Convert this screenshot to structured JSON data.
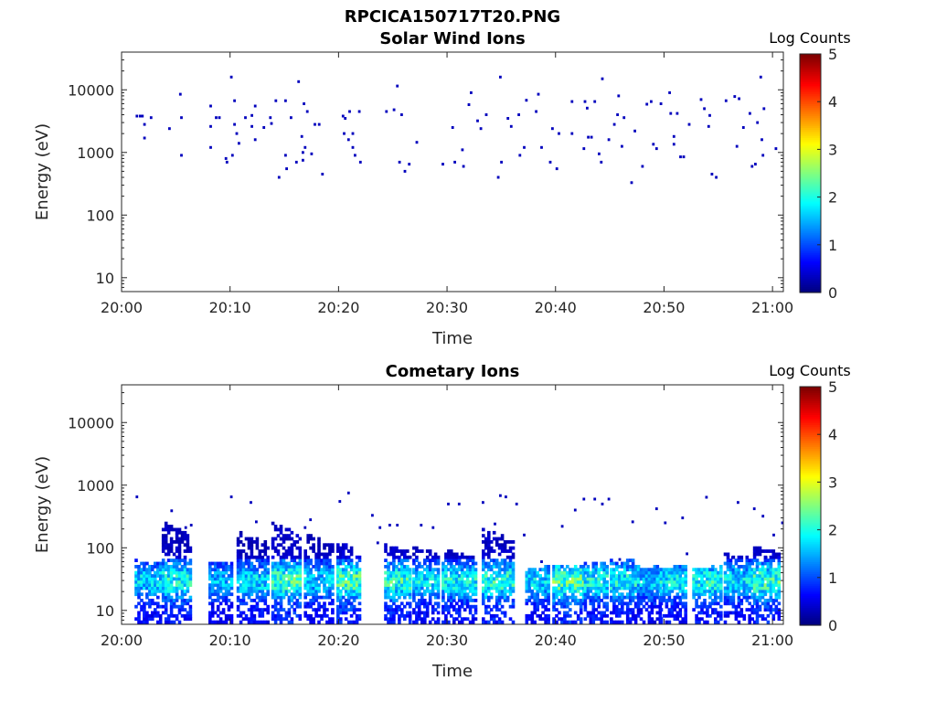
{
  "figure": {
    "title": "RPCICA150717T20.PNG",
    "panels": [
      {
        "title": "Solar Wind Ions",
        "xlabel": "Time",
        "ylabel": "Energy (eV)",
        "colorbar": {
          "label": "Log Counts",
          "ticks": [
            "0",
            "1",
            "2",
            "3",
            "4",
            "5"
          ]
        }
      },
      {
        "title": "Cometary Ions",
        "xlabel": "Time",
        "ylabel": "Energy (eV)",
        "colorbar": {
          "label": "Log Counts",
          "ticks": [
            "0",
            "1",
            "2",
            "3",
            "4",
            "5"
          ]
        }
      }
    ]
  },
  "colors": {
    "colormap": "jet",
    "low": "#00008f",
    "high": "#800000",
    "axes": "#262626"
  },
  "chart_data": [
    {
      "type": "heatmap",
      "title": "Solar Wind Ions",
      "xlabel": "Time",
      "ylabel": "Energy (eV)",
      "xlim": [
        "20:00",
        "21:01"
      ],
      "ylim": [
        6,
        40000
      ],
      "yscale": "log",
      "xticks": [
        "20:00",
        "20:10",
        "20:20",
        "20:30",
        "20:40",
        "20:50",
        "21:00"
      ],
      "yticks": [
        "10",
        "100",
        "1000",
        "10000"
      ],
      "clim": [
        0,
        5
      ],
      "colorbar_label": "Log Counts",
      "points": [
        [
          1.3,
          3800,
          0.3
        ],
        [
          1.6,
          3800,
          0.3
        ],
        [
          1.8,
          3800,
          0.3
        ],
        [
          2.0,
          2800,
          0.3
        ],
        [
          2.0,
          1700,
          0.3
        ],
        [
          2.6,
          3600,
          0.3
        ],
        [
          4.3,
          2400,
          0.3
        ],
        [
          5.3,
          8500,
          0.3
        ],
        [
          5.4,
          900,
          0.3
        ],
        [
          5.4,
          3600,
          0.3
        ],
        [
          8.1,
          5500,
          0.3
        ],
        [
          8.1,
          2600,
          0.3
        ],
        [
          8.1,
          1200,
          0.3
        ],
        [
          8.6,
          3600,
          0.3
        ],
        [
          8.9,
          3600,
          0.3
        ],
        [
          9.5,
          800,
          0.3
        ],
        [
          9.6,
          700,
          0.3
        ],
        [
          10.0,
          16000,
          0.3
        ],
        [
          10.1,
          900,
          0.3
        ],
        [
          10.3,
          6700,
          0.3
        ],
        [
          10.3,
          2800,
          0.3
        ],
        [
          10.5,
          2000,
          0.3
        ],
        [
          10.7,
          1400,
          0.3
        ],
        [
          11.3,
          3600,
          0.3
        ],
        [
          11.9,
          2600,
          0.3
        ],
        [
          11.9,
          3900,
          0.3
        ],
        [
          12.2,
          5500,
          0.3
        ],
        [
          12.2,
          1600,
          0.3
        ],
        [
          13.0,
          2500,
          0.3
        ],
        [
          13.7,
          2900,
          0.3
        ],
        [
          13.6,
          3600,
          0.3
        ],
        [
          14.1,
          6700,
          0.3
        ],
        [
          14.4,
          400,
          0.3
        ],
        [
          15.0,
          6700,
          0.3
        ],
        [
          15.0,
          900,
          0.3
        ],
        [
          15.1,
          550,
          0.3
        ],
        [
          15.5,
          3600,
          0.3
        ],
        [
          16.0,
          700,
          0.3
        ],
        [
          16.2,
          13500,
          0.3
        ],
        [
          16.5,
          1800,
          0.3
        ],
        [
          16.6,
          1000,
          0.3
        ],
        [
          16.6,
          750,
          0.3
        ],
        [
          16.7,
          6000,
          0.3
        ],
        [
          16.8,
          1200,
          0.3
        ],
        [
          17.0,
          4500,
          0.3
        ],
        [
          17.4,
          950,
          0.3
        ],
        [
          17.7,
          2800,
          0.3
        ],
        [
          18.1,
          2800,
          0.3
        ],
        [
          18.4,
          450,
          0.3
        ],
        [
          20.3,
          3800,
          0.3
        ],
        [
          20.4,
          2000,
          0.3
        ],
        [
          20.5,
          3500,
          0.3
        ],
        [
          20.8,
          1600,
          0.3
        ],
        [
          20.9,
          4500,
          0.3
        ],
        [
          21.2,
          1200,
          0.3
        ],
        [
          21.2,
          2000,
          0.3
        ],
        [
          21.4,
          900,
          0.3
        ],
        [
          21.8,
          4500,
          0.3
        ],
        [
          21.9,
          700,
          0.3
        ],
        [
          24.3,
          4500,
          0.3
        ],
        [
          25.0,
          4800,
          0.3
        ],
        [
          25.3,
          11500,
          0.3
        ],
        [
          25.5,
          700,
          0.3
        ],
        [
          25.7,
          4000,
          0.3
        ],
        [
          26.0,
          500,
          0.3
        ],
        [
          26.4,
          650,
          0.3
        ],
        [
          27.1,
          1450,
          0.3
        ],
        [
          29.5,
          650,
          0.3
        ],
        [
          30.4,
          2500,
          0.3
        ],
        [
          30.6,
          700,
          0.3
        ],
        [
          31.3,
          1100,
          0.3
        ],
        [
          31.4,
          600,
          0.3
        ],
        [
          31.9,
          5800,
          0.3
        ],
        [
          32.1,
          9000,
          0.3
        ],
        [
          32.7,
          3200,
          0.3
        ],
        [
          33.0,
          2400,
          0.3
        ],
        [
          33.5,
          4000,
          0.3
        ],
        [
          34.6,
          400,
          0.3
        ],
        [
          34.8,
          16000,
          0.3
        ],
        [
          34.9,
          700,
          0.3
        ],
        [
          35.5,
          3500,
          0.3
        ],
        [
          35.8,
          2600,
          0.3
        ],
        [
          36.5,
          4000,
          0.3
        ],
        [
          36.6,
          900,
          0.3
        ],
        [
          37.0,
          1200,
          0.3
        ],
        [
          37.2,
          6800,
          0.3
        ],
        [
          38.1,
          4500,
          0.3
        ],
        [
          38.3,
          8500,
          0.3
        ],
        [
          38.6,
          1200,
          0.3
        ],
        [
          39.4,
          700,
          0.3
        ],
        [
          39.6,
          2400,
          0.3
        ],
        [
          40.0,
          550,
          0.3
        ],
        [
          40.2,
          2000,
          0.3
        ],
        [
          41.4,
          6500,
          0.3
        ],
        [
          41.4,
          2000,
          0.3
        ],
        [
          42.5,
          1150,
          0.3
        ],
        [
          42.6,
          6500,
          0.3
        ],
        [
          42.8,
          5100,
          0.3
        ],
        [
          42.9,
          1750,
          0.3
        ],
        [
          43.2,
          1750,
          0.3
        ],
        [
          43.5,
          6500,
          0.3
        ],
        [
          43.9,
          950,
          0.3
        ],
        [
          44.1,
          700,
          0.3
        ],
        [
          44.2,
          15000,
          0.3
        ],
        [
          44.8,
          1600,
          0.3
        ],
        [
          45.3,
          2800,
          0.3
        ],
        [
          45.6,
          4000,
          0.3
        ],
        [
          45.7,
          8000,
          0.3
        ],
        [
          46.2,
          3600,
          0.3
        ],
        [
          46.0,
          1250,
          0.3
        ],
        [
          46.9,
          330,
          0.3
        ],
        [
          47.2,
          2200,
          0.3
        ],
        [
          47.9,
          600,
          0.3
        ],
        [
          48.3,
          5900,
          0.3
        ],
        [
          48.7,
          6500,
          0.3
        ],
        [
          48.9,
          1350,
          0.3
        ],
        [
          49.2,
          1150,
          0.3
        ],
        [
          49.6,
          6000,
          0.3
        ],
        [
          50.4,
          9000,
          0.3
        ],
        [
          50.5,
          4200,
          0.3
        ],
        [
          50.8,
          1800,
          0.3
        ],
        [
          50.8,
          1350,
          0.3
        ],
        [
          51.1,
          4200,
          0.3
        ],
        [
          51.4,
          850,
          0.3
        ],
        [
          51.7,
          850,
          0.3
        ],
        [
          52.2,
          2800,
          0.3
        ],
        [
          53.3,
          7000,
          0.3
        ],
        [
          53.6,
          5000,
          0.3
        ],
        [
          54.0,
          2600,
          0.3
        ],
        [
          54.1,
          3900,
          0.3
        ],
        [
          54.3,
          450,
          0.3
        ],
        [
          54.7,
          400,
          0.3
        ],
        [
          55.6,
          6700,
          0.3
        ],
        [
          56.4,
          7800,
          0.3
        ],
        [
          56.6,
          1250,
          0.3
        ],
        [
          56.8,
          7200,
          0.3
        ],
        [
          57.2,
          2500,
          0.3
        ],
        [
          57.8,
          4200,
          0.3
        ],
        [
          58.0,
          600,
          0.3
        ],
        [
          58.3,
          650,
          0.3
        ],
        [
          58.5,
          3000,
          0.3
        ],
        [
          58.8,
          16000,
          0.3
        ],
        [
          58.9,
          1600,
          0.3
        ],
        [
          59.0,
          900,
          0.3
        ],
        [
          59.1,
          5000,
          0.3
        ],
        [
          60.2,
          1150,
          0.3
        ]
      ]
    },
    {
      "type": "heatmap",
      "title": "Cometary Ions",
      "xlabel": "Time",
      "ylabel": "Energy (eV)",
      "xlim": [
        "20:00",
        "21:01"
      ],
      "ylim": [
        6,
        40000
      ],
      "yscale": "log",
      "xticks": [
        "20:00",
        "20:10",
        "20:20",
        "20:30",
        "20:40",
        "20:50",
        "21:00"
      ],
      "yticks": [
        "10",
        "100",
        "1000",
        "10000"
      ],
      "clim": [
        0,
        5
      ],
      "colorbar_label": "Log Counts",
      "bursts": [
        {
          "t0": 1.2,
          "t1": 3.5,
          "top": 60,
          "peak": 2.0
        },
        {
          "t0": 3.7,
          "t1": 6.3,
          "top": 250,
          "peak": 2.3
        },
        {
          "t0": 8.0,
          "t1": 10.0,
          "top": 55,
          "peak": 1.8
        },
        {
          "t0": 10.6,
          "t1": 13.5,
          "top": 180,
          "peak": 2.0
        },
        {
          "t0": 13.8,
          "t1": 16.5,
          "top": 260,
          "peak": 2.5
        },
        {
          "t0": 16.8,
          "t1": 19.5,
          "top": 160,
          "peak": 1.9
        },
        {
          "t0": 19.8,
          "t1": 21.8,
          "top": 120,
          "peak": 2.6
        },
        {
          "t0": 24.2,
          "t1": 26.6,
          "top": 110,
          "peak": 2.4
        },
        {
          "t0": 26.8,
          "t1": 29.2,
          "top": 100,
          "peak": 2.1
        },
        {
          "t0": 29.5,
          "t1": 32.5,
          "top": 90,
          "peak": 2.2
        },
        {
          "t0": 33.2,
          "t1": 36.0,
          "top": 200,
          "peak": 2.4
        },
        {
          "t0": 37.2,
          "t1": 39.2,
          "top": 45,
          "peak": 2.0
        },
        {
          "t0": 39.7,
          "t1": 42.5,
          "top": 50,
          "peak": 2.6
        },
        {
          "t0": 42.6,
          "t1": 44.8,
          "top": 55,
          "peak": 2.2
        },
        {
          "t0": 45.0,
          "t1": 47.5,
          "top": 65,
          "peak": 2.2
        },
        {
          "t0": 47.5,
          "t1": 49.5,
          "top": 45,
          "peak": 1.9
        },
        {
          "t0": 49.6,
          "t1": 52.0,
          "top": 45,
          "peak": 2.1
        },
        {
          "t0": 52.6,
          "t1": 55.2,
          "top": 45,
          "peak": 2.3
        },
        {
          "t0": 55.5,
          "t1": 58.0,
          "top": 80,
          "peak": 2.0
        },
        {
          "t0": 58.2,
          "t1": 60.5,
          "top": 110,
          "peak": 2.5
        }
      ],
      "points": [
        [
          1.3,
          650,
          0.3
        ],
        [
          4.5,
          390,
          0.3
        ],
        [
          5.8,
          210,
          0.3
        ],
        [
          6.3,
          230,
          0.3
        ],
        [
          10.0,
          650,
          0.3
        ],
        [
          11.8,
          530,
          0.3
        ],
        [
          12.3,
          260,
          0.3
        ],
        [
          16.8,
          210,
          0.3
        ],
        [
          17.3,
          280,
          0.3
        ],
        [
          20.0,
          550,
          0.3
        ],
        [
          20.8,
          750,
          0.3
        ],
        [
          23.0,
          330,
          0.3
        ],
        [
          23.7,
          210,
          0.3
        ],
        [
          24.6,
          230,
          0.3
        ],
        [
          25.3,
          230,
          0.3
        ],
        [
          27.5,
          230,
          0.3
        ],
        [
          28.6,
          210,
          0.3
        ],
        [
          30.0,
          500,
          0.3
        ],
        [
          31.0,
          500,
          0.3
        ],
        [
          33.2,
          530,
          0.3
        ],
        [
          34.3,
          240,
          0.3
        ],
        [
          34.8,
          680,
          0.3
        ],
        [
          35.3,
          650,
          0.3
        ],
        [
          36.3,
          500,
          0.3
        ],
        [
          37.0,
          160,
          0.3
        ],
        [
          40.5,
          220,
          0.3
        ],
        [
          41.7,
          400,
          0.3
        ],
        [
          42.5,
          600,
          0.3
        ],
        [
          43.5,
          600,
          0.3
        ],
        [
          44.2,
          500,
          0.3
        ],
        [
          44.8,
          600,
          0.3
        ],
        [
          47.0,
          260,
          0.3
        ],
        [
          49.2,
          420,
          0.3
        ],
        [
          50.0,
          250,
          0.3
        ],
        [
          51.6,
          300,
          0.3
        ],
        [
          53.8,
          640,
          0.3
        ],
        [
          56.7,
          530,
          0.3
        ],
        [
          58.2,
          420,
          0.3
        ],
        [
          59.0,
          320,
          0.3
        ],
        [
          60.0,
          160,
          0.3
        ],
        [
          60.8,
          250,
          0.3
        ],
        [
          59.3,
          70,
          0.3
        ],
        [
          56.2,
          70,
          0.3
        ],
        [
          52.0,
          80,
          0.3
        ],
        [
          45.8,
          65,
          0.3
        ],
        [
          38.6,
          60,
          0.3
        ],
        [
          23.5,
          120,
          0.3
        ],
        [
          14.2,
          90,
          0.3
        ]
      ]
    }
  ]
}
